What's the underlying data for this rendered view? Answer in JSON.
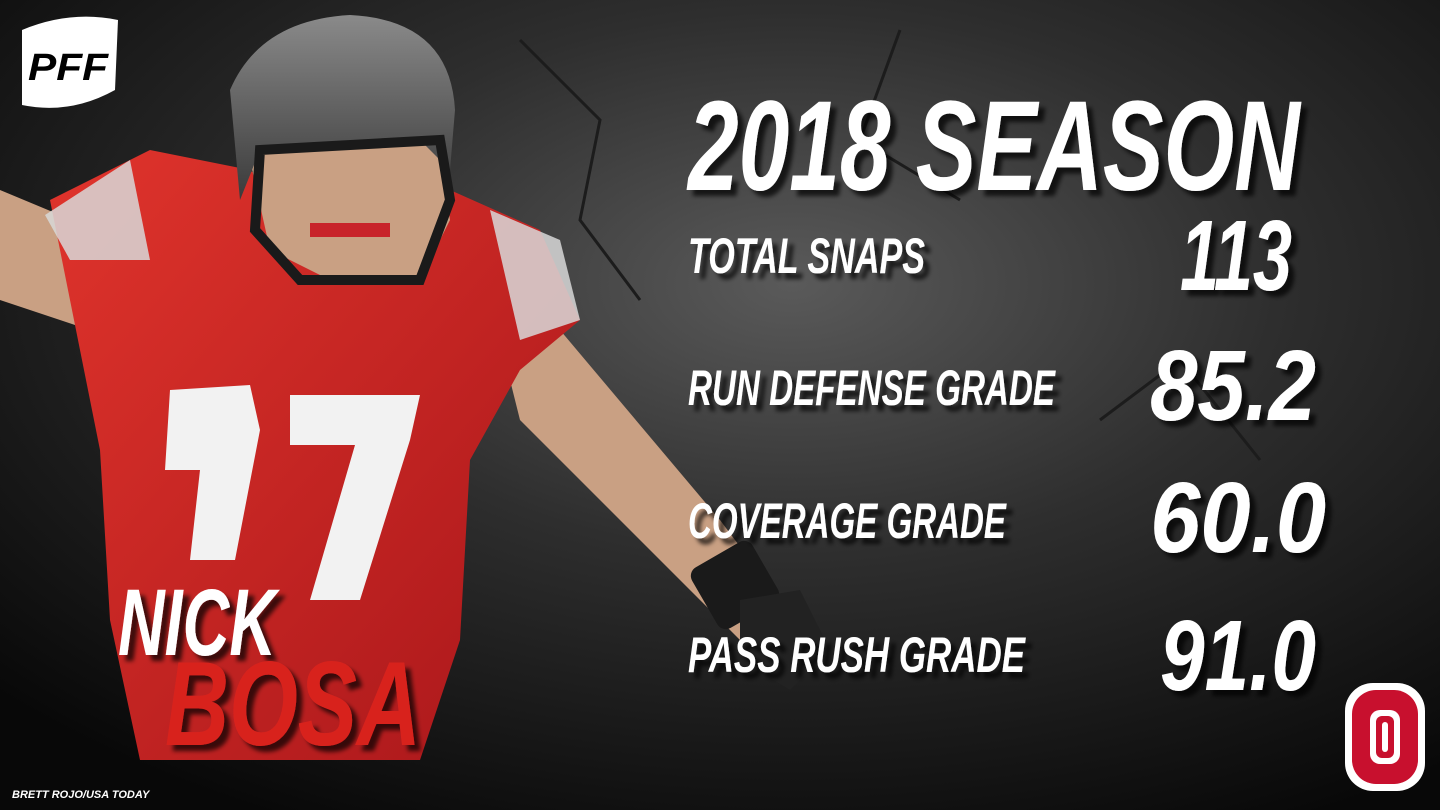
{
  "logo": "PFF",
  "title": "2018 SEASON",
  "stats": [
    {
      "label": "TOTAL SNAPS",
      "value": "113"
    },
    {
      "label": "RUN DEFENSE GRADE",
      "value": "85.2"
    },
    {
      "label": "COVERAGE GRADE",
      "value": "60.0"
    },
    {
      "label": "PASS RUSH GRADE",
      "value": "91.0"
    }
  ],
  "player": {
    "first": "NICK",
    "last": "BOSA"
  },
  "credit": "BRETT ROJO/USA TODAY"
}
